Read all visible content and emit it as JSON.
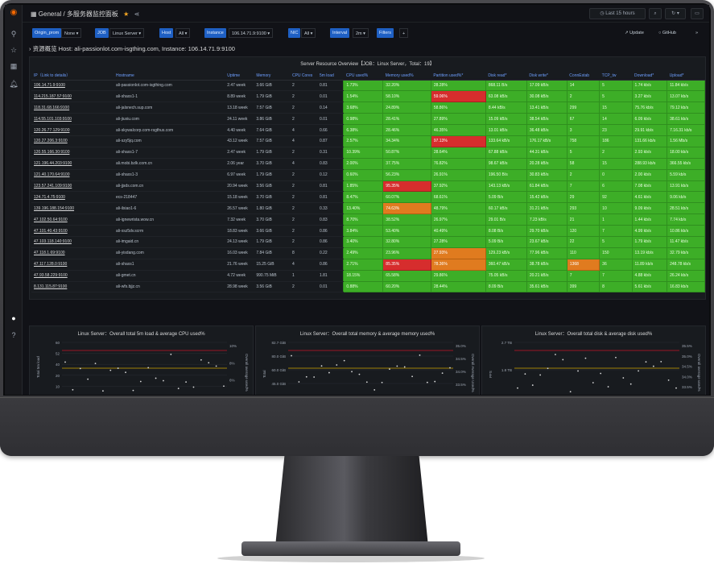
{
  "topbar": {
    "breadcrumb": "General / 多服务器监控面板",
    "time_range": "Last 15 hours",
    "icons": [
      "apps-icon",
      "star-icon",
      "share-icon",
      "clock-icon",
      "zoom-out-icon",
      "refresh-icon",
      "chevron-down-icon",
      "monitor-icon"
    ]
  },
  "variables": [
    {
      "label": "Origin_prom",
      "value": "None ▾"
    },
    {
      "label": "JOB",
      "value": "Linux Server ▾"
    },
    {
      "label": "Host",
      "value": "All ▾"
    },
    {
      "label": "Instance",
      "value": "106.14.71.9:9100 ▾"
    },
    {
      "label": "NIC",
      "value": "All ▾"
    },
    {
      "label": "Interval",
      "value": "2m ▾"
    },
    {
      "label": "Filters",
      "value": "+"
    }
  ],
  "var_right": {
    "update": "Update",
    "github": "GitHub"
  },
  "row_title": "› 资源概览  Host:  ali-passionlot.com-isgthing.com,  Instance:  106.14.71.9:9100",
  "table": {
    "title": "Server Resource Overview【JOB：Linux Server，Total：19】",
    "headers": [
      "IP（Link to details）",
      "Hostname",
      "Uptime",
      "Memory",
      "CPU Cores",
      "5m load",
      "CPU used%",
      "Memory used%",
      "Partition used%*",
      "Disk read*",
      "Disk write*",
      "ConnEstab",
      "TCP_tw",
      "Download*",
      "Upload*"
    ],
    "rows": [
      [
        "106.14.71.9:9100",
        "ali-passionlot.com-isgthing.com",
        "2.47 week",
        "3.66 GiB",
        "2",
        "0.81",
        "1.73%",
        "32.20%",
        "28.28%",
        "868.11 B/s",
        "17.09 kB/s",
        "14",
        "5",
        "1.74 kb/s",
        "11.84 kb/s"
      ],
      [
        "114.215.187.57:9100",
        "ali-shaxs1-1",
        "8.89 week",
        "1.79 GiB",
        "2",
        "0.01",
        "1.54%",
        "58.10%",
        "59.06%",
        "63.08 kB/s",
        "30.08 kB/s",
        "2",
        "5",
        "3.27 kb/s",
        "13.07 kb/s"
      ],
      [
        "118.31.68.166:9100",
        "ali-jalsnech.sup.com",
        "13.18 week",
        "7.57 GiB",
        "2",
        "0.14",
        "3.68%",
        "24.89%",
        "58.86%",
        "8.44 kB/s",
        "13.41 kB/s",
        "299",
        "15",
        "75.76 kb/s",
        "79.12 kb/s"
      ],
      [
        "114.55.101.103:9100",
        "ali-jiuxiu.com",
        "24.11 week",
        "3.86 GiB",
        "2",
        "0.01",
        "0.98%",
        "28.41%",
        "27.89%",
        "15.09 kB/s",
        "38.54 kB/s",
        "67",
        "14",
        "6.09 kb/s",
        "38.61 kb/s"
      ],
      [
        "120.26.77.129:9100",
        "ali-skywalcorp.com-rsgthus.com",
        "4.40 week",
        "7.64 GiB",
        "4",
        "0.66",
        "6.38%",
        "28.46%",
        "46.35%",
        "13.01 kB/s",
        "36.48 kB/s",
        "3",
        "23",
        "29.91 kb/s",
        "7.16.31 kb/s"
      ],
      [
        "120.27.206.3:9100",
        "ali-szy5jq.com",
        "43.12 week",
        "7.57 GiB",
        "4",
        "0.87",
        "2.57%",
        "34.34%",
        "97.13%",
        "133.64 kB/s",
        "176.17 kB/s",
        "758",
        "186",
        "131.66 kb/s",
        "1.56 Mb/s"
      ],
      [
        "120.55.166.30:9100",
        "ali-shaxs1-7",
        "2.47 week",
        "1.79 GiB",
        "2",
        "0.31",
        "10.39%",
        "50.87%",
        "28.64%",
        "67.88 kB/s",
        "44.31 kB/s",
        "5",
        "2",
        "2.93 kb/s",
        "18.00 kb/s"
      ],
      [
        "121.196.44.203:9100",
        "ali.mobi.bzlk.com.cn",
        "2.06 year",
        "3.70 GiB",
        "4",
        "0.83",
        "2.00%",
        "37.75%",
        "76.82%",
        "98.67 kB/s",
        "20.28 kB/s",
        "58",
        "15",
        "288.93 kb/s",
        "366.55 kb/s"
      ],
      [
        "121.40.170.64:9100",
        "ali-shaxs1-3",
        "6.97 week",
        "1.79 GiB",
        "2",
        "0.12",
        "0.60%",
        "56.23%",
        "26.91%",
        "196.50 B/s",
        "30.83 kB/s",
        "2",
        "0",
        "2.00 kb/s",
        "5.59 kb/s"
      ],
      [
        "123.57.241.109:9100",
        "ali-jjsds.com.cn",
        "20.94 week",
        "3.56 GiB",
        "2",
        "0.81",
        "1.85%",
        "95.35%",
        "37.92%",
        "143.13 kB/s",
        "61.84 kB/s",
        "7",
        "6",
        "7.08 kb/s",
        "13.91 kb/s"
      ],
      [
        "124.71.4.75:9100",
        "ecs-218447",
        "15.18 week",
        "3.70 GiB",
        "2",
        "0.81",
        "8.47%",
        "60.07%",
        "68.61%",
        "5.09 B/s",
        "15.42 kB/s",
        "29",
        "92",
        "4.61 kb/s",
        "9.06 kb/s"
      ],
      [
        "139.196.188.154:9100",
        "ali-ilxiao1-6",
        "26.57 week",
        "1.80 GiB",
        "2",
        "0.33",
        "13.40%",
        "74.63%",
        "48.79%",
        "60.17 kB/s",
        "31.21 kB/s",
        "293",
        "10",
        "9.09 kb/s",
        "28.51 kb/s"
      ],
      [
        "47.102.50.64:9100",
        "ali-ignewrista.wow.cn",
        "7.32 week",
        "3.70 GiB",
        "2",
        "0.83",
        "8.70%",
        "38.52%",
        "26.97%",
        "29.01 B/s",
        "7.23 kB/s",
        "21",
        "1",
        "1.44 kb/s",
        "7.74 kb/s"
      ],
      [
        "47.101.40.43:9100",
        "ali-xsz5dv.scrm",
        "18.83 week",
        "3.66 GiB",
        "2",
        "0.86",
        "3.84%",
        "53.40%",
        "40.49%",
        "8.08 B/s",
        "29.70 kB/s",
        "120",
        "7",
        "4.99 kb/s",
        "10.86 kb/s"
      ],
      [
        "47.103.118.140:9100",
        "ali-imgaid.cn",
        "24.13 week",
        "1.79 GiB",
        "2",
        "0.86",
        "3.40%",
        "32.80%",
        "27.28%",
        "5.09 B/s",
        "23.67 kB/s",
        "22",
        "5",
        "1.79 kb/s",
        "11.47 kb/s"
      ],
      [
        "47.118.1.69:9100",
        "ali-yisdang.com",
        "16.03 week",
        "7.84 GiB",
        "8",
        "0.22",
        "2.49%",
        "23.96%",
        "27.93%",
        "129.23 kB/s",
        "77.96 kB/s",
        "110",
        "150",
        "13.19 kb/s",
        "32.79 kb/s"
      ],
      [
        "47.117.128.0:9100",
        "ali-shaxs1",
        "21.76 week",
        "15.25 GiB",
        "4",
        "0.86",
        "2.71%",
        "85.35%",
        "78.36%",
        "360.47 kB/s",
        "38.78 kB/s",
        "1368",
        "36",
        "11.89 kb/s",
        "248.78 kb/s"
      ],
      [
        "47.93.58.229:9100",
        "ali-gmet.cn",
        "4.72 week",
        "990.75 MiB",
        "1",
        "1.81",
        "18.15%",
        "65.58%",
        "29.86%",
        "75.05 kB/s",
        "20.21 kB/s",
        "7",
        "7",
        "4.88 kb/s",
        "26.24 kb/s"
      ],
      [
        "8.131.115.87:9100",
        "ali-wfs.bjjz.cn",
        "28.98 week",
        "3.56 GiB",
        "2",
        "0.01",
        "0.88%",
        "60.20%",
        "28.44%",
        "8.09 B/s",
        "35.61 kB/s",
        "399",
        "8",
        "5.61 kb/s",
        "16.83 kb/s"
      ]
    ],
    "alerts": {
      "1,8": "r",
      "5,8": "r",
      "9,7": "r",
      "11,7": "o",
      "15,8": "o",
      "16,7": "r",
      "16,8": "o",
      "16,11": "o"
    }
  },
  "charts": [
    {
      "title": "Linux Server：Overall total 5m load & average CPU used%",
      "left_ticks": [
        "60",
        "52",
        "40",
        "20",
        "10",
        "1"
      ],
      "right_ticks": [
        "10%",
        "8%",
        "6%",
        "4%"
      ],
      "left_label": "Total 5m load",
      "right_label": "Overall average used%"
    },
    {
      "title": "Linux Server：Overall total memory & average memory used%",
      "left_ticks": [
        "82.7 GiB",
        "80.0 GiB",
        "60.0 GiB",
        "45.0 GiB",
        "30.0 GiB"
      ],
      "right_ticks": [
        "35.0%",
        "34.5%",
        "34.0%",
        "33.5%",
        "33.0%"
      ],
      "left_label": "Total",
      "right_label": "Overall Average Used%"
    },
    {
      "title": "Linux Server：Overall total disk & average disk used%",
      "left_ticks": [
        "2.7 TB",
        "1.8 TB",
        "911.0 GiB"
      ],
      "right_ticks": [
        "35.5%",
        "35.0%",
        "34.5%",
        "34.0%",
        "33.5%",
        "33.0%"
      ],
      "left_label": "PFS",
      "right_label": "Overall average used%"
    }
  ]
}
